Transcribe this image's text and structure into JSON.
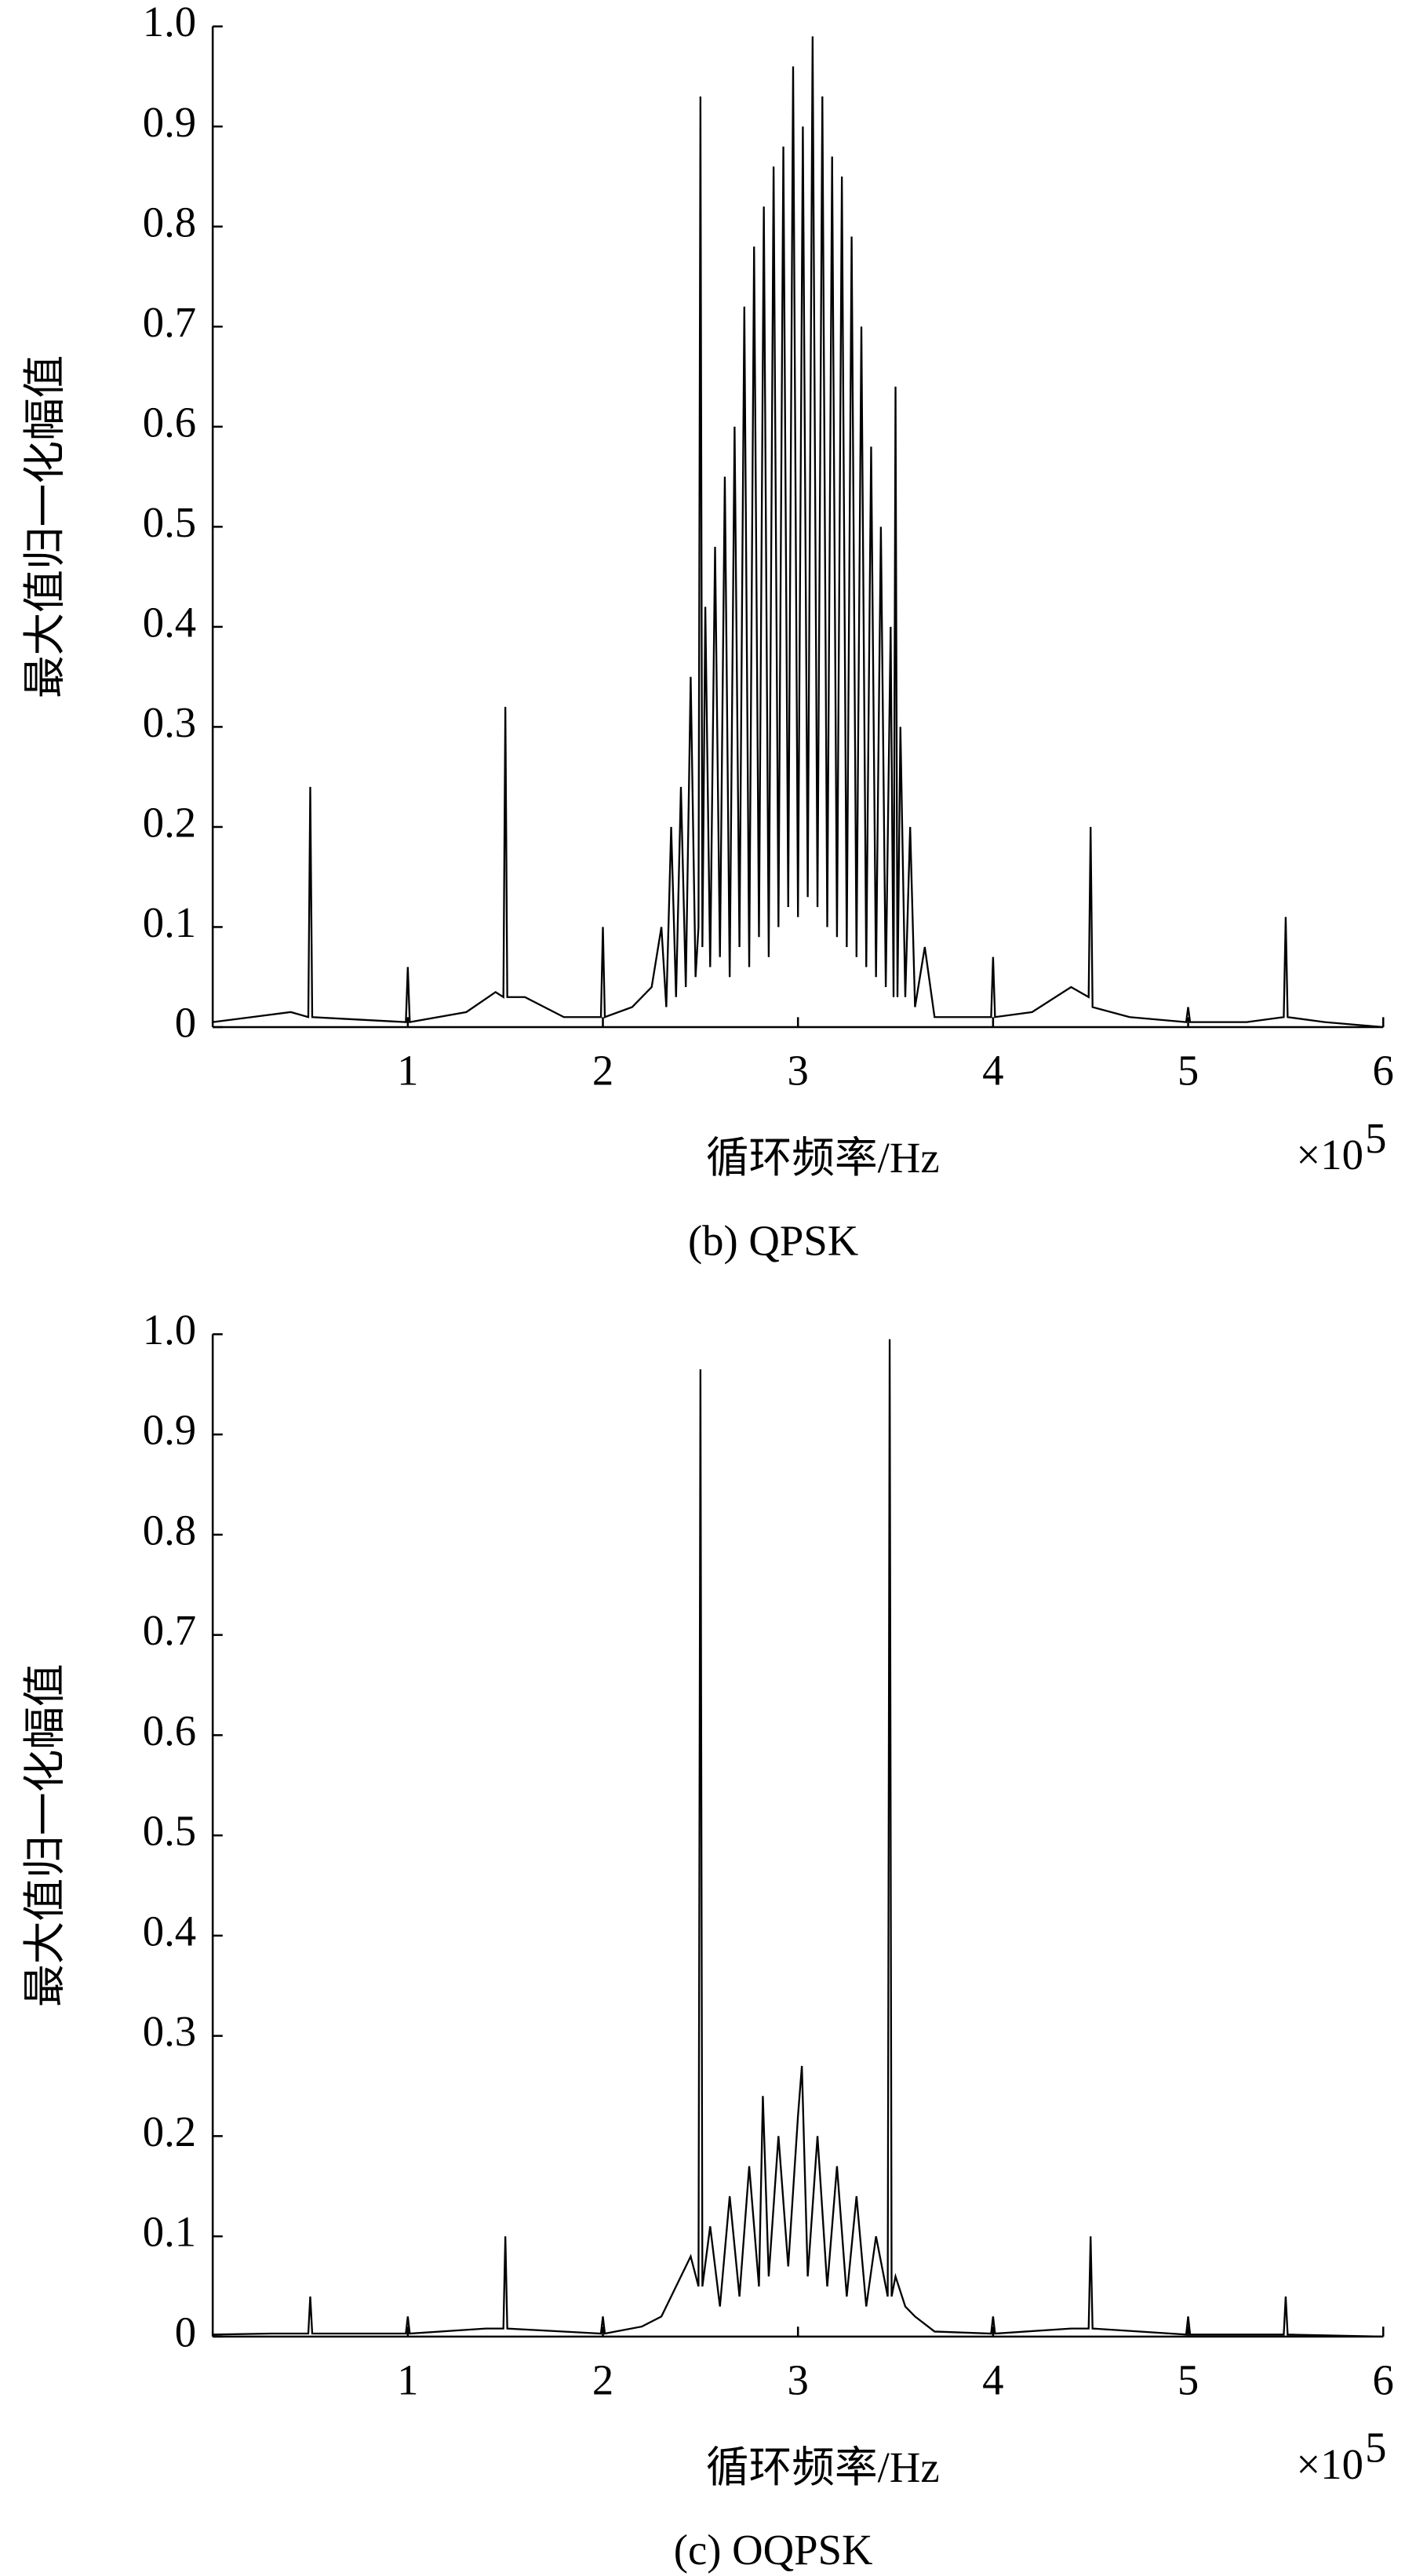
{
  "chart_data": [
    {
      "type": "line",
      "caption": "(b) QPSK",
      "y_label": "最大值归一化幅值",
      "x_label": "循环频率/Hz",
      "x_multiplier": "×10",
      "x_exponent": "5",
      "xlim": [
        0,
        6
      ],
      "xticks": [
        1,
        2,
        3,
        4,
        5,
        6
      ],
      "ylim": [
        0,
        1
      ],
      "yticks": [
        0,
        0.1,
        0.2,
        0.3,
        0.4,
        0.5,
        0.6,
        0.7,
        0.8,
        0.9,
        {
          "value": 1,
          "label": "1.0"
        }
      ],
      "grid": false,
      "color": "#000000",
      "x": [
        0,
        0.2,
        0.4,
        0.49,
        0.5,
        0.51,
        0.7,
        0.99,
        1.0,
        1.01,
        1.3,
        1.45,
        1.49,
        1.5,
        1.51,
        1.6,
        1.8,
        1.99,
        2.0,
        2.01,
        2.15,
        2.25,
        2.3,
        2.325,
        2.35,
        2.375,
        2.4,
        2.425,
        2.45,
        2.475,
        2.49,
        2.5,
        2.51,
        2.525,
        2.55,
        2.575,
        2.6,
        2.625,
        2.65,
        2.675,
        2.7,
        2.725,
        2.75,
        2.775,
        2.8,
        2.825,
        2.85,
        2.875,
        2.9,
        2.925,
        2.95,
        2.975,
        3.0,
        3.025,
        3.05,
        3.075,
        3.1,
        3.125,
        3.15,
        3.175,
        3.2,
        3.225,
        3.25,
        3.275,
        3.3,
        3.325,
        3.35,
        3.375,
        3.4,
        3.425,
        3.45,
        3.475,
        3.49,
        3.5,
        3.51,
        3.525,
        3.55,
        3.575,
        3.6,
        3.65,
        3.7,
        3.99,
        4.0,
        4.01,
        4.2,
        4.4,
        4.49,
        4.5,
        4.51,
        4.7,
        4.99,
        5.0,
        5.01,
        5.3,
        5.49,
        5.5,
        5.51,
        5.7,
        6.0
      ],
      "values": [
        0.005,
        0.01,
        0.015,
        0.01,
        0.24,
        0.01,
        0.008,
        0.005,
        0.06,
        0.005,
        0.015,
        0.035,
        0.03,
        0.32,
        0.03,
        0.03,
        0.01,
        0.01,
        0.1,
        0.01,
        0.02,
        0.04,
        0.1,
        0.02,
        0.2,
        0.03,
        0.24,
        0.04,
        0.35,
        0.05,
        0.1,
        0.93,
        0.08,
        0.42,
        0.06,
        0.48,
        0.07,
        0.55,
        0.05,
        0.6,
        0.08,
        0.72,
        0.06,
        0.78,
        0.09,
        0.82,
        0.07,
        0.86,
        0.1,
        0.88,
        0.12,
        0.96,
        0.11,
        0.9,
        0.13,
        0.99,
        0.12,
        0.93,
        0.1,
        0.87,
        0.09,
        0.85,
        0.08,
        0.79,
        0.07,
        0.7,
        0.06,
        0.58,
        0.05,
        0.5,
        0.04,
        0.4,
        0.03,
        0.64,
        0.03,
        0.3,
        0.03,
        0.2,
        0.02,
        0.08,
        0.01,
        0.01,
        0.07,
        0.01,
        0.015,
        0.04,
        0.03,
        0.2,
        0.02,
        0.01,
        0.005,
        0.02,
        0.005,
        0.005,
        0.01,
        0.11,
        0.01,
        0.005,
        0
      ]
    },
    {
      "type": "line",
      "caption": "(c) OQPSK",
      "y_label": "最大值归一化幅值",
      "x_label": "循环频率/Hz",
      "x_multiplier": "×10",
      "x_exponent": "5",
      "xlim": [
        0,
        6
      ],
      "xticks": [
        1,
        2,
        3,
        4,
        5,
        6
      ],
      "ylim": [
        0,
        1
      ],
      "yticks": [
        0,
        0.1,
        0.2,
        0.3,
        0.4,
        0.5,
        0.6,
        0.7,
        0.8,
        0.9,
        {
          "value": 1,
          "label": "1.0"
        }
      ],
      "grid": false,
      "color": "#000000",
      "x": [
        0,
        0.3,
        0.49,
        0.5,
        0.51,
        0.99,
        1.0,
        1.01,
        1.4,
        1.49,
        1.5,
        1.51,
        1.99,
        2.0,
        2.01,
        2.2,
        2.3,
        2.35,
        2.4,
        2.45,
        2.49,
        2.5,
        2.51,
        2.55,
        2.6,
        2.65,
        2.7,
        2.75,
        2.8,
        2.82,
        2.85,
        2.9,
        2.95,
        3.0,
        3.02,
        3.05,
        3.1,
        3.15,
        3.2,
        3.25,
        3.3,
        3.35,
        3.4,
        3.46,
        3.47,
        3.48,
        3.5,
        3.55,
        3.6,
        3.7,
        3.99,
        4.0,
        4.01,
        4.4,
        4.49,
        4.5,
        4.51,
        4.99,
        5.0,
        5.01,
        5.49,
        5.5,
        5.51,
        6.0
      ],
      "values": [
        0.002,
        0.003,
        0.003,
        0.04,
        0.003,
        0.003,
        0.02,
        0.003,
        0.008,
        0.008,
        0.1,
        0.008,
        0.003,
        0.02,
        0.003,
        0.01,
        0.02,
        0.04,
        0.06,
        0.08,
        0.05,
        0.965,
        0.05,
        0.11,
        0.03,
        0.14,
        0.04,
        0.17,
        0.05,
        0.24,
        0.06,
        0.2,
        0.07,
        0.22,
        0.27,
        0.06,
        0.2,
        0.05,
        0.17,
        0.04,
        0.14,
        0.03,
        0.1,
        0.04,
        0.995,
        0.04,
        0.06,
        0.03,
        0.02,
        0.005,
        0.003,
        0.02,
        0.003,
        0.008,
        0.008,
        0.1,
        0.008,
        0.002,
        0.02,
        0.002,
        0.002,
        0.04,
        0.002,
        0
      ]
    }
  ]
}
